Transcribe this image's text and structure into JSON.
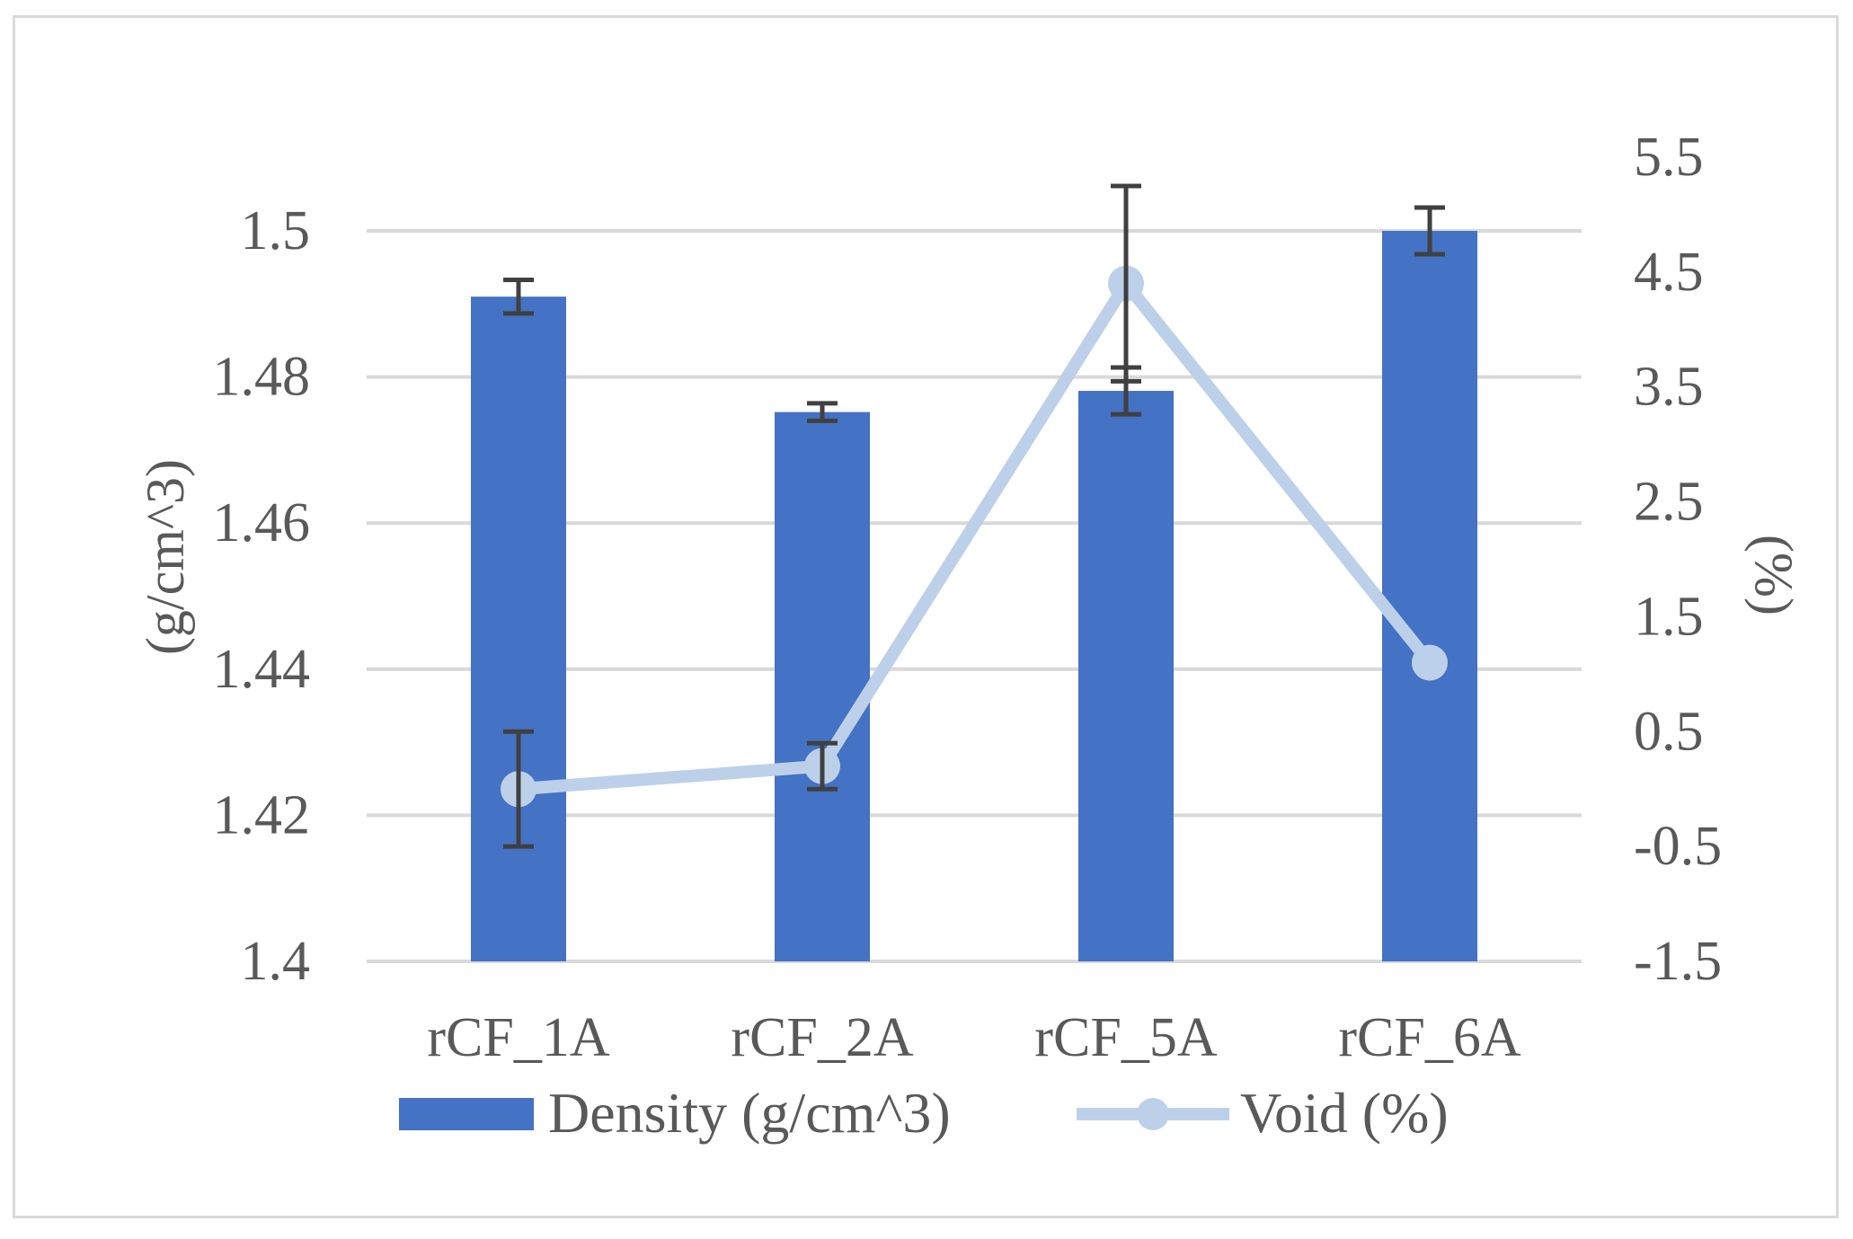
{
  "chart_data": {
    "type": "bar",
    "title": "",
    "xlabel": "",
    "categories": [
      "rCF_1A",
      "rCF_2A",
      "rCF_5A",
      "rCF_6A"
    ],
    "primary_axis": {
      "label": "(g/cm^3)",
      "ylim": [
        1.4,
        1.5
      ],
      "ticks": [
        1.4,
        1.42,
        1.44,
        1.46,
        1.48,
        1.5
      ],
      "tick_labels": [
        "1.4",
        "1.42",
        "1.44",
        "1.46",
        "1.48",
        "1.5"
      ]
    },
    "secondary_axis": {
      "label": "(%)",
      "ylim": [
        -1.5,
        5.5
      ],
      "ticks": [
        -1.5,
        -0.5,
        0.5,
        1.5,
        2.5,
        3.5,
        4.5,
        5.5
      ],
      "tick_labels": [
        "-1.5",
        "-0.5",
        "0.5",
        "1.5",
        "2.5",
        "3.5",
        "4.5",
        "5.5"
      ]
    },
    "series": [
      {
        "name": "Density (g/cm^3)",
        "kind": "bar",
        "axis": "primary",
        "color": "#4472c4",
        "values": [
          1.491,
          1.4752,
          1.4781,
          1.5
        ],
        "error": [
          0.0023,
          0.0012,
          0.0032,
          0.0032
        ]
      },
      {
        "name": "Void (%)",
        "kind": "line",
        "axis": "secondary",
        "color": "#bdd0ea",
        "values": [
          0.0,
          0.2,
          4.4,
          1.1
        ],
        "error": [
          0.5,
          0.2,
          0.85,
          0.0
        ]
      }
    ],
    "gridlines": true,
    "legend_position": "bottom"
  },
  "colors": {
    "grid": "#d9d9d9",
    "text": "#595959",
    "error_bar": "#404040"
  }
}
